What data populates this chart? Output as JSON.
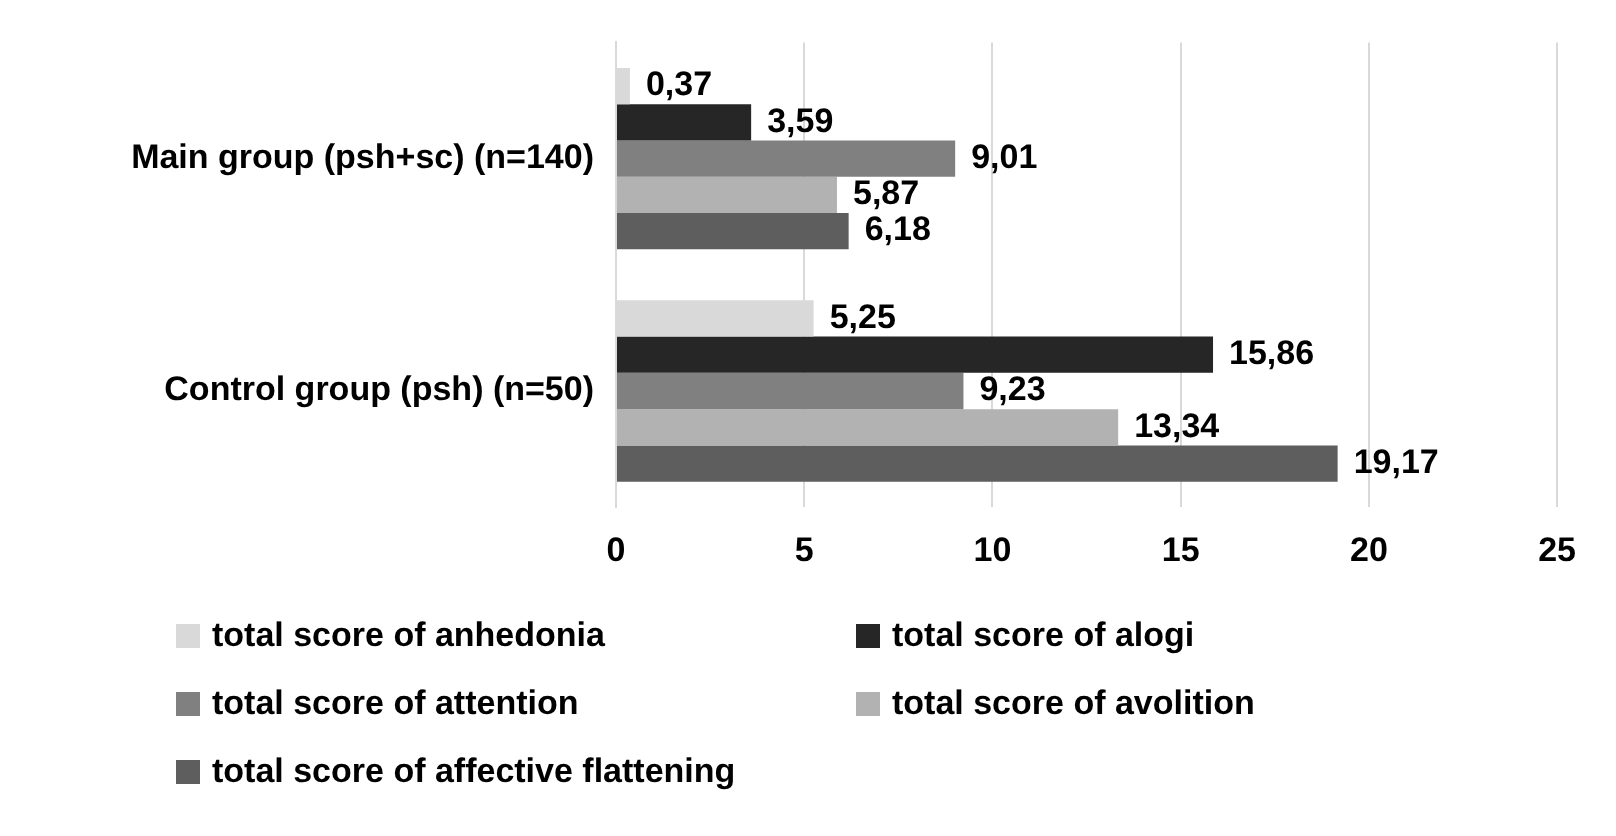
{
  "chart_data": {
    "type": "bar",
    "orientation": "horizontal",
    "categories": [
      "Main group (psh+sc) (n=140)",
      "Control group (psh) (n=50)"
    ],
    "series": [
      {
        "name": "total score of anhedonia",
        "color": "#d9d9d9",
        "values": [
          0.37,
          5.25
        ],
        "value_labels": [
          "0,37",
          "5,25"
        ]
      },
      {
        "name": "total score of alogi",
        "color": "#262626",
        "values": [
          3.59,
          15.86
        ],
        "value_labels": [
          "3,59",
          "15,86"
        ]
      },
      {
        "name": "total score of attention",
        "color": "#808080",
        "values": [
          9.01,
          9.23
        ],
        "value_labels": [
          "9,01",
          "9,23"
        ]
      },
      {
        "name": "total score of avolition",
        "color": "#b2b2b2",
        "values": [
          5.87,
          13.34
        ],
        "value_labels": [
          "5,87",
          "13,34"
        ]
      },
      {
        "name": "total score of affective flattening",
        "color": "#5e5e5e",
        "values": [
          6.18,
          19.17
        ],
        "value_labels": [
          "6,18",
          "19,17"
        ]
      }
    ],
    "xlim": [
      0,
      25
    ],
    "xticks": [
      0,
      5,
      10,
      15,
      20,
      25
    ],
    "grid": "x",
    "legend": "bottom"
  }
}
